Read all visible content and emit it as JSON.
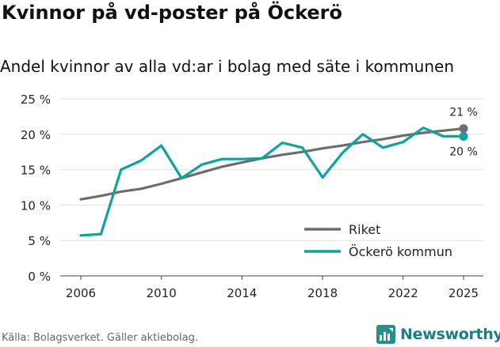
{
  "title": "Kvinnor på vd-poster på Öckerö",
  "subtitle": "Andel kvinnor av alla vd:ar i bolag med säte i kommunen",
  "source": "Källa: Bolagsverket. Gäller aktiebolag.",
  "brand": "Newsworthy",
  "chart_data": {
    "type": "line",
    "title": "Kvinnor på vd-poster på Öckerö",
    "xlabel": "",
    "ylabel": "",
    "x": [
      2006,
      2007,
      2008,
      2009,
      2010,
      2011,
      2012,
      2013,
      2014,
      2015,
      2016,
      2017,
      2018,
      2019,
      2020,
      2021,
      2022,
      2023,
      2024,
      2025
    ],
    "xlim": [
      2006,
      2025
    ],
    "ylim": [
      0,
      25
    ],
    "xticks": [
      2006,
      2010,
      2014,
      2018,
      2022,
      2025
    ],
    "xtick_labels": [
      "2006",
      "2010",
      "2014",
      "2018",
      "2022",
      "2025"
    ],
    "yticks": [
      0,
      5,
      10,
      15,
      20,
      25
    ],
    "ytick_labels": [
      "0 %",
      "5 %",
      "10 %",
      "15 %",
      "20 %",
      "25 %"
    ],
    "grid": true,
    "legend_position": "bottom-right",
    "series": [
      {
        "name": "Riket",
        "color": "#6d6d70",
        "values": [
          10.8,
          11.3,
          11.9,
          12.3,
          13.0,
          13.8,
          14.6,
          15.4,
          16.0,
          16.6,
          17.1,
          17.5,
          18.0,
          18.4,
          18.9,
          19.3,
          19.8,
          20.2,
          20.5,
          20.8
        ],
        "end_label": "21 %"
      },
      {
        "name": "Öckerö kommun",
        "color": "#0ea39c",
        "values": [
          5.7,
          5.9,
          15.0,
          16.3,
          18.4,
          13.8,
          15.7,
          16.5,
          16.5,
          16.6,
          18.8,
          18.1,
          13.9,
          17.4,
          20.0,
          18.1,
          18.9,
          20.9,
          19.7,
          19.7
        ],
        "end_label": "20 %"
      }
    ]
  }
}
